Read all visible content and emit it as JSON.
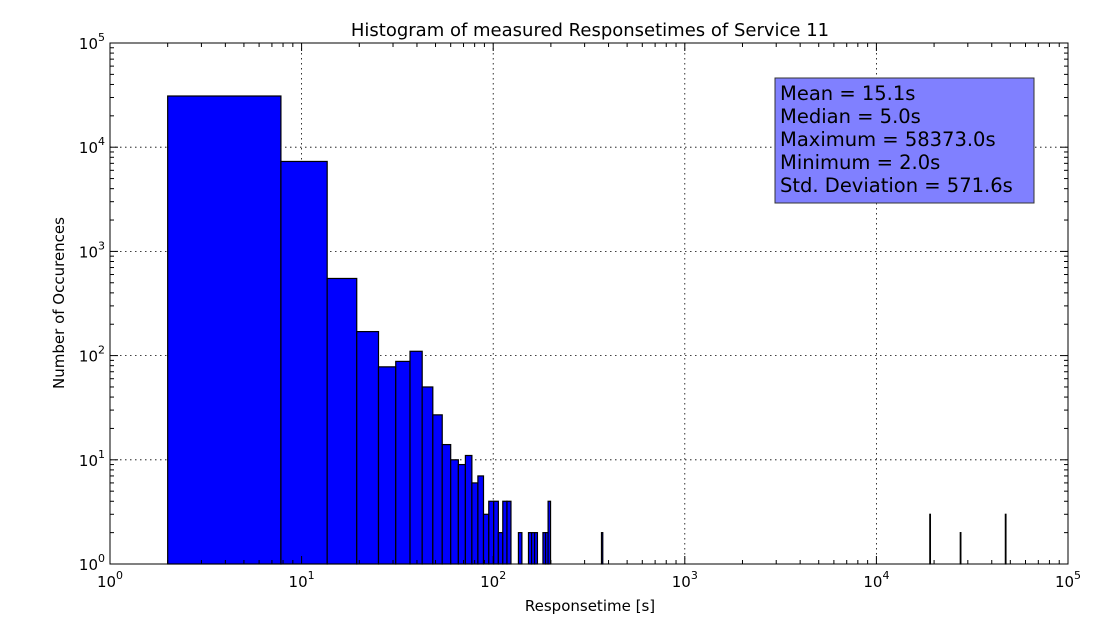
{
  "chart_data": {
    "type": "bar",
    "title": "Histogram of measured Responsetimes of Service 11",
    "xlabel": "Responsetime [s]",
    "ylabel": "Number of Occurences",
    "xscale": "log",
    "yscale": "log",
    "xlim": [
      1,
      100000
    ],
    "ylim": [
      1,
      100000
    ],
    "x_ticks": [
      {
        "base": "10",
        "exp": "0",
        "value": 1
      },
      {
        "base": "10",
        "exp": "1",
        "value": 10
      },
      {
        "base": "10",
        "exp": "2",
        "value": 100
      },
      {
        "base": "10",
        "exp": "3",
        "value": 1000
      },
      {
        "base": "10",
        "exp": "4",
        "value": 10000
      },
      {
        "base": "10",
        "exp": "5",
        "value": 100000
      }
    ],
    "y_ticks": [
      {
        "base": "10",
        "exp": "0",
        "value": 1
      },
      {
        "base": "10",
        "exp": "1",
        "value": 10
      },
      {
        "base": "10",
        "exp": "2",
        "value": 100
      },
      {
        "base": "10",
        "exp": "3",
        "value": 1000
      },
      {
        "base": "10",
        "exp": "4",
        "value": 10000
      },
      {
        "base": "10",
        "exp": "5",
        "value": 100000
      }
    ],
    "grid": true,
    "bar_color": "#0000ff",
    "bars": [
      {
        "x0": 2,
        "x1": 7.8,
        "count": 31000
      },
      {
        "x0": 7.8,
        "x1": 13.6,
        "count": 7300
      },
      {
        "x0": 13.6,
        "x1": 19.4,
        "count": 550
      },
      {
        "x0": 19.4,
        "x1": 25.2,
        "count": 170
      },
      {
        "x0": 25.2,
        "x1": 31,
        "count": 78
      },
      {
        "x0": 31,
        "x1": 36.8,
        "count": 88
      },
      {
        "x0": 36.8,
        "x1": 42.6,
        "count": 110
      },
      {
        "x0": 42.6,
        "x1": 48.4,
        "count": 50
      },
      {
        "x0": 48.4,
        "x1": 54.2,
        "count": 27
      },
      {
        "x0": 54.2,
        "x1": 60,
        "count": 14
      },
      {
        "x0": 60,
        "x1": 65.8,
        "count": 10
      },
      {
        "x0": 65.8,
        "x1": 71.6,
        "count": 9
      },
      {
        "x0": 71.6,
        "x1": 77.4,
        "count": 11
      },
      {
        "x0": 77.4,
        "x1": 83.2,
        "count": 6
      },
      {
        "x0": 83.2,
        "x1": 89,
        "count": 7
      },
      {
        "x0": 89,
        "x1": 94.8,
        "count": 3
      },
      {
        "x0": 94.8,
        "x1": 100.6,
        "count": 4
      },
      {
        "x0": 100.6,
        "x1": 106.4,
        "count": 4
      },
      {
        "x0": 106.4,
        "x1": 112.2,
        "count": 2
      },
      {
        "x0": 112.2,
        "x1": 118,
        "count": 4
      },
      {
        "x0": 118,
        "x1": 123.8,
        "count": 4
      },
      {
        "x0": 135.4,
        "x1": 141.2,
        "count": 2
      },
      {
        "x0": 152.8,
        "x1": 158.6,
        "count": 2
      },
      {
        "x0": 158.6,
        "x1": 164.4,
        "count": 2
      },
      {
        "x0": 164.4,
        "x1": 170.2,
        "count": 2
      },
      {
        "x0": 181.8,
        "x1": 187.6,
        "count": 2
      },
      {
        "x0": 187.6,
        "x1": 193.4,
        "count": 2
      },
      {
        "x0": 193.4,
        "x1": 199.2,
        "count": 4
      },
      {
        "x0": 367.4,
        "x1": 373.2,
        "count": 2
      },
      {
        "x0": 19000,
        "x1": 19005.8,
        "count": 3
      },
      {
        "x0": 27400,
        "x1": 27405.8,
        "count": 2
      },
      {
        "x0": 47100,
        "x1": 47105.8,
        "count": 3
      }
    ],
    "stats_box": {
      "background": "#8080ff",
      "lines": [
        "Mean = 15.1s",
        "Median = 5.0s",
        "Maximum = 58373.0s",
        "Minimum = 2.0s",
        "Std. Deviation = 571.6s"
      ]
    }
  }
}
